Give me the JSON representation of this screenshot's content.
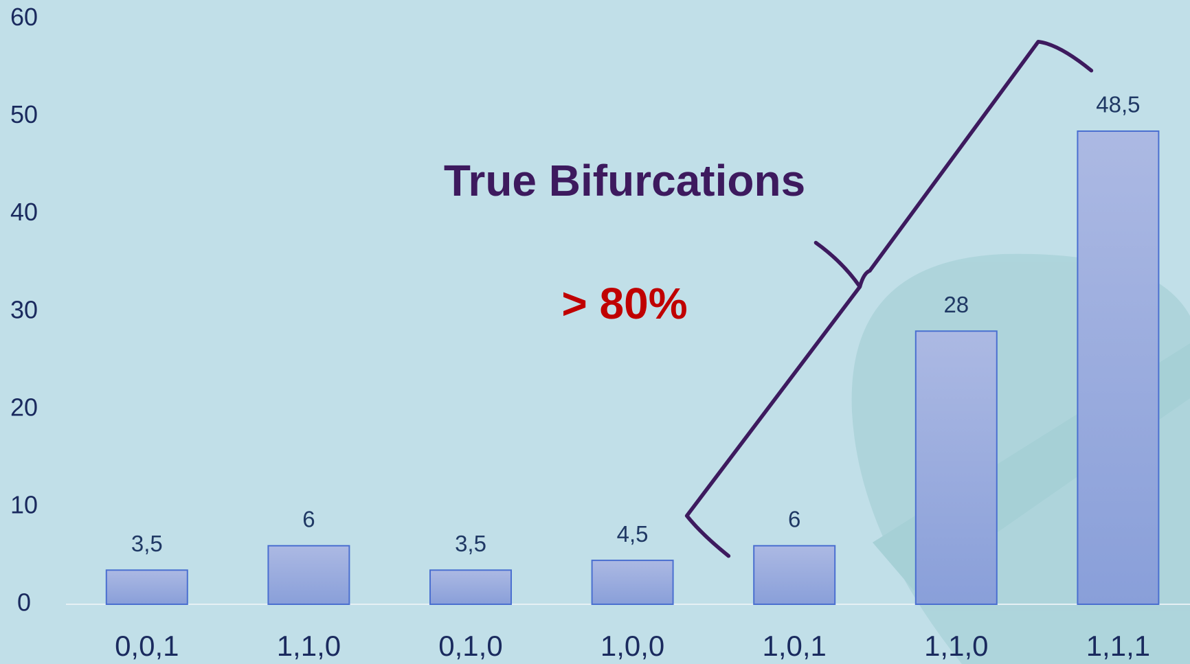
{
  "chart_data": {
    "type": "bar",
    "categories": [
      "0,0,1",
      "1,1,0",
      "0,1,0",
      "1,0,0",
      "1,0,1",
      "1,1,0",
      "1,1,1"
    ],
    "values": [
      3.5,
      6,
      3.5,
      4.5,
      6,
      28,
      48.5
    ],
    "value_labels": [
      "3,5",
      "6",
      "3,5",
      "4,5",
      "6",
      "28",
      "48,5"
    ],
    "color": "#98a9de",
    "ylim": [
      0,
      60
    ],
    "yticks": [
      0,
      10,
      20,
      30,
      40,
      50,
      60
    ],
    "annotations": [
      "True Bifurcations",
      "> 80%"
    ]
  }
}
